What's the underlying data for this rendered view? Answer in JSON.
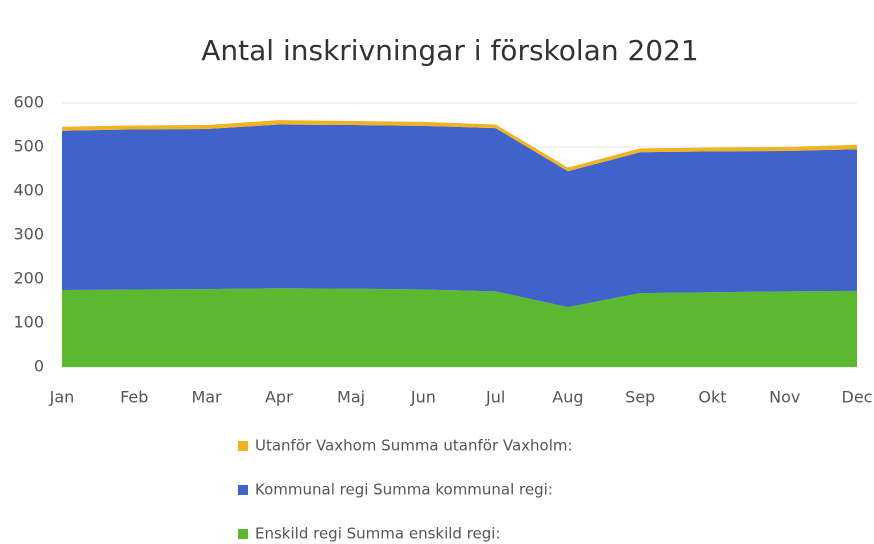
{
  "chart_data": {
    "type": "stacked-area",
    "title": "Antal inskrivningar i förskolan 2021",
    "categories": [
      "Jan",
      "Feb",
      "Mar",
      "Apr",
      "Maj",
      "Jun",
      "Jul",
      "Aug",
      "Sep",
      "Okt",
      "Nov",
      "Dec"
    ],
    "series": [
      {
        "name": "Enskild regi Summa enskild regi:",
        "color": "#5cb82e",
        "values": [
          175,
          176,
          177,
          179,
          178,
          176,
          172,
          136,
          168,
          170,
          172,
          173
        ]
      },
      {
        "name": "Kommunal regi Summa kommunal regi:",
        "color": "#3f63c8",
        "values": [
          362,
          364,
          364,
          372,
          372,
          372,
          371,
          309,
          320,
          320,
          319,
          322
        ]
      },
      {
        "name": "Utanför Vaxhom  Summa utanför Vaxholm:",
        "color": "#f0b323",
        "values": [
          9,
          9,
          9,
          10,
          9,
          9,
          8,
          8,
          9,
          9,
          9,
          10
        ]
      }
    ],
    "ylim": [
      0,
      600
    ],
    "yticks": [
      0,
      100,
      200,
      300,
      400,
      500,
      600
    ],
    "grid": true
  }
}
